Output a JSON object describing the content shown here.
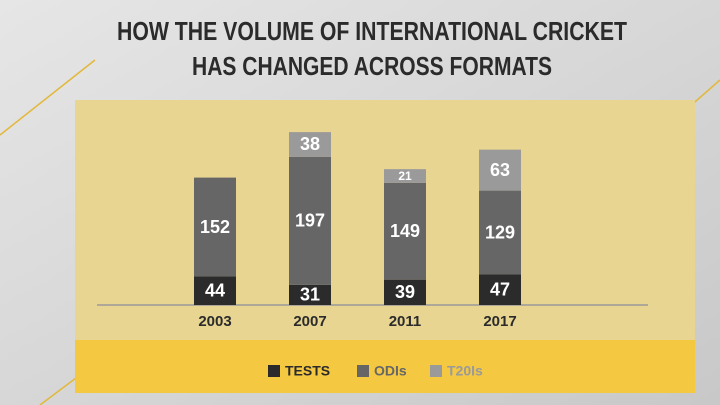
{
  "chart_data": {
    "type": "stacked_bar",
    "title": [
      "HOW THE  VOLUME OF INTERNATIONAL CRICKET",
      "HAS CHANGED ACROSS FORMATS"
    ],
    "categories": [
      "2003",
      "2007",
      "2011",
      "2017"
    ],
    "series": [
      {
        "name": "TESTS",
        "color": "#2b2b2b",
        "values": [
          44,
          31,
          39,
          47
        ]
      },
      {
        "name": "ODIs",
        "color": "#666666",
        "values": [
          152,
          197,
          149,
          129
        ]
      },
      {
        "name": "T20Is",
        "color": "#9a9a9a",
        "values": [
          null,
          38,
          21,
          63
        ]
      }
    ],
    "legend": "bottom"
  }
}
